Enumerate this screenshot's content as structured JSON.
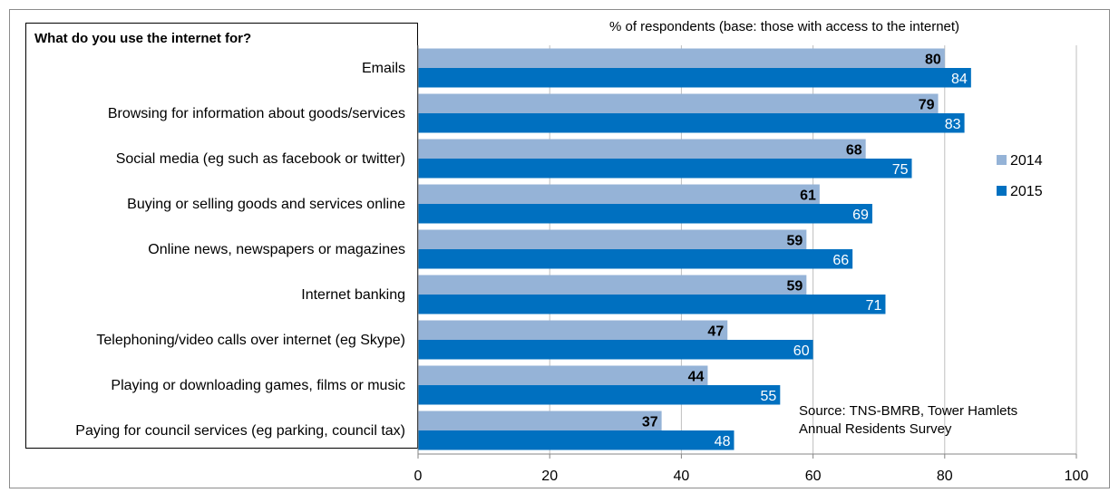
{
  "chart_data": {
    "type": "bar",
    "orientation": "horizontal",
    "title": "What do you use the internet for?",
    "subtitle": "% of respondents (base: those with access to the internet)",
    "source": [
      "Source: TNS-BMRB, Tower Hamlets",
      "Annual Residents Survey"
    ],
    "categories": [
      "Emails",
      "Browsing for information about goods/services",
      "Social media (eg such as facebook or twitter)",
      "Buying or selling goods and services online",
      "Online news, newspapers or magazines",
      "Internet banking",
      "Telephoning/video calls over internet (eg Skype)",
      "Playing or downloading games, films or music",
      "Paying for council services (eg parking, council tax)"
    ],
    "series": [
      {
        "name": "2014",
        "color": "#95b3d7",
        "values": [
          80,
          79,
          68,
          61,
          59,
          59,
          47,
          44,
          37
        ]
      },
      {
        "name": "2015",
        "color": "#0070c0",
        "values": [
          84,
          83,
          75,
          69,
          66,
          71,
          60,
          55,
          48
        ]
      }
    ],
    "xlim": [
      0,
      100
    ],
    "xticks": [
      0,
      20,
      40,
      60,
      80,
      100
    ],
    "grid": "vertical",
    "legend_position": "right"
  }
}
